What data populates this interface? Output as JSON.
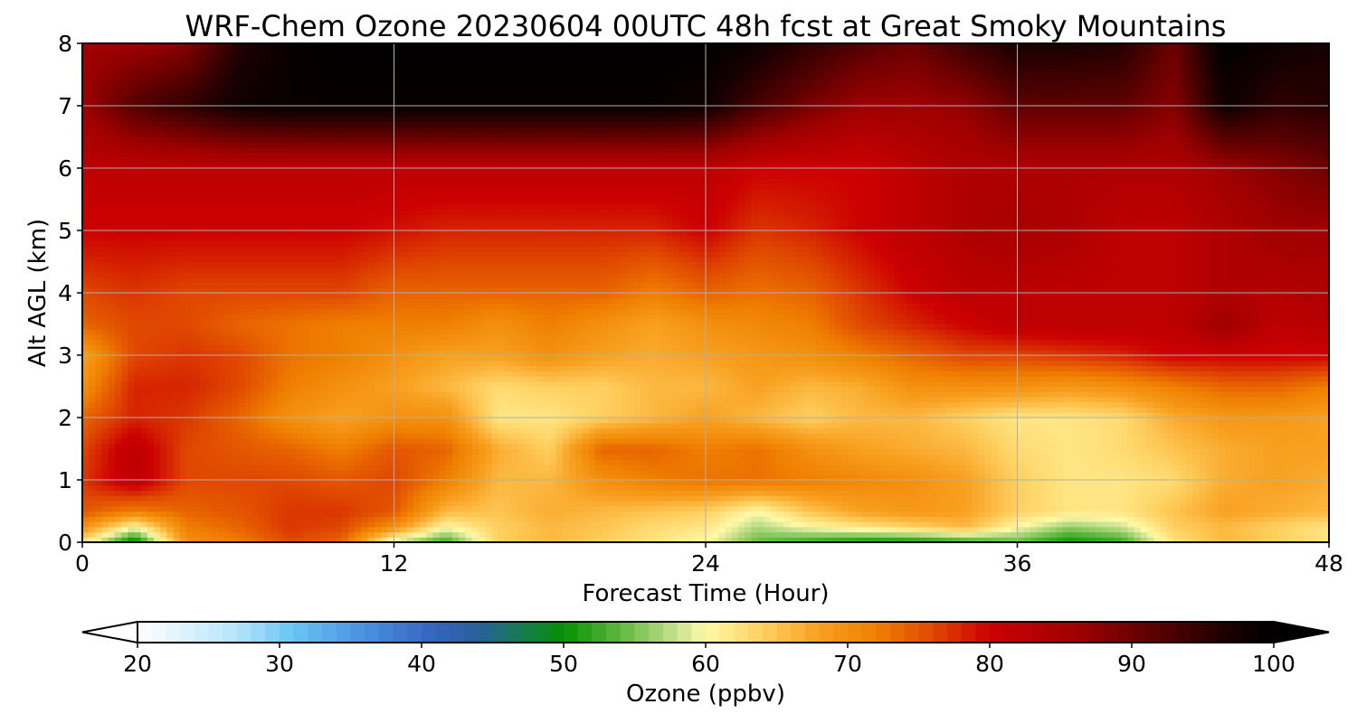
{
  "chart_data": {
    "type": "heatmap",
    "title": "WRF-Chem Ozone  20230604 00UTC 48h fcst at Great Smoky Mountains",
    "xlabel": "Forecast Time (Hour)",
    "ylabel": "Alt AGL (km)",
    "xlim": [
      0,
      48
    ],
    "ylim": [
      0,
      8
    ],
    "xticks": [
      "0",
      "12",
      "24",
      "36",
      "48"
    ],
    "yticks": [
      "0",
      "1",
      "2",
      "3",
      "4",
      "5",
      "6",
      "7",
      "8"
    ],
    "grid": true,
    "colorbar": {
      "label": "Ozone  (ppbv)",
      "range": [
        20,
        100
      ],
      "ticks": [
        "20",
        "30",
        "40",
        "50",
        "60",
        "70",
        "80",
        "90",
        "100"
      ],
      "extend": "both",
      "colormap_stops": [
        {
          "v": 20,
          "c": "#ffffff"
        },
        {
          "v": 27,
          "c": "#b4e4fa"
        },
        {
          "v": 31,
          "c": "#68c4f4"
        },
        {
          "v": 36,
          "c": "#4a90e0"
        },
        {
          "v": 41,
          "c": "#3464be"
        },
        {
          "v": 44,
          "c": "#27609a"
        },
        {
          "v": 47,
          "c": "#167a50"
        },
        {
          "v": 50,
          "c": "#069000"
        },
        {
          "v": 54,
          "c": "#60b840"
        },
        {
          "v": 58,
          "c": "#c8e290"
        },
        {
          "v": 60,
          "c": "#fffaa8"
        },
        {
          "v": 64,
          "c": "#ffd060"
        },
        {
          "v": 68,
          "c": "#f8a020"
        },
        {
          "v": 72,
          "c": "#f08000"
        },
        {
          "v": 76,
          "c": "#e04800"
        },
        {
          "v": 80,
          "c": "#cc0000"
        },
        {
          "v": 86,
          "c": "#a00000"
        },
        {
          "v": 92,
          "c": "#540000"
        },
        {
          "v": 97,
          "c": "#180000"
        },
        {
          "v": 100,
          "c": "#000000"
        }
      ]
    },
    "field": {
      "x": [
        0,
        2,
        4,
        6,
        8,
        10,
        12,
        14,
        16,
        18,
        20,
        22,
        24,
        26,
        28,
        30,
        32,
        34,
        36,
        38,
        40,
        42,
        44,
        46,
        48
      ],
      "y": [
        0,
        0.25,
        0.5,
        1,
        1.5,
        2,
        2.5,
        3,
        3.5,
        4,
        5,
        6,
        7,
        8
      ],
      "values": [
        [
          62,
          48,
          70,
          72,
          76,
          74,
          58,
          52,
          64,
          66,
          64,
          62,
          60,
          54,
          52,
          50,
          50,
          52,
          54,
          50,
          52,
          62,
          66,
          64,
          62
        ],
        [
          70,
          60,
          72,
          74,
          77,
          76,
          70,
          60,
          64,
          66,
          65,
          63,
          62,
          57,
          60,
          62,
          64,
          66,
          60,
          56,
          58,
          64,
          66,
          64,
          62
        ],
        [
          75,
          72,
          74,
          75,
          77,
          77,
          75,
          66,
          65,
          67,
          66,
          65,
          64,
          60,
          65,
          68,
          69,
          68,
          64,
          62,
          62,
          65,
          68,
          67,
          66
        ],
        [
          77,
          82,
          76,
          76,
          76,
          75,
          76,
          72,
          66,
          66,
          70,
          72,
          73,
          73,
          72,
          71,
          70,
          68,
          64,
          62,
          62,
          63,
          67,
          68,
          67
        ],
        [
          76,
          82,
          76,
          75,
          74,
          72,
          75,
          74,
          67,
          64,
          74,
          74,
          72,
          73,
          70,
          68,
          67,
          66,
          63,
          62,
          63,
          65,
          67,
          68,
          68
        ],
        [
          74,
          78,
          77,
          74,
          70,
          68,
          70,
          70,
          62,
          62,
          64,
          66,
          68,
          66,
          64,
          66,
          66,
          64,
          62,
          62,
          63,
          67,
          69,
          69,
          68
        ],
        [
          70,
          78,
          78,
          76,
          72,
          70,
          68,
          66,
          63,
          64,
          64,
          66,
          66,
          68,
          66,
          67,
          70,
          70,
          70,
          69,
          70,
          72,
          74,
          74,
          72
        ],
        [
          68,
          76,
          77,
          76,
          73,
          72,
          70,
          68,
          68,
          70,
          68,
          67,
          68,
          69,
          70,
          72,
          74,
          76,
          76,
          77,
          78,
          80,
          80,
          80,
          80
        ],
        [
          74,
          76,
          76,
          74,
          73,
          72,
          72,
          72,
          70,
          72,
          70,
          68,
          70,
          71,
          72,
          76,
          78,
          80,
          82,
          82,
          82,
          82,
          86,
          82,
          83
        ],
        [
          76,
          77,
          76,
          76,
          76,
          76,
          74,
          74,
          74,
          74,
          74,
          72,
          74,
          73,
          74,
          77,
          80,
          82,
          82,
          82,
          82,
          82,
          84,
          83,
          84
        ],
        [
          80,
          80,
          80,
          80,
          80,
          80,
          79,
          78,
          78,
          78,
          78,
          78,
          80,
          77,
          78,
          80,
          82,
          84,
          85,
          84,
          82,
          82,
          84,
          86,
          86
        ],
        [
          82,
          82,
          82,
          82,
          82,
          82,
          82,
          82,
          82,
          82,
          82,
          82,
          82,
          80,
          80,
          80,
          82,
          84,
          84,
          84,
          84,
          84,
          86,
          88,
          90
        ],
        [
          86,
          92,
          95,
          98,
          99,
          99,
          99,
          99,
          99,
          99,
          99,
          99,
          98,
          93,
          89,
          86,
          86,
          87,
          91,
          91,
          91,
          88,
          98,
          95,
          96
        ],
        [
          86,
          86,
          88,
          96,
          99,
          100,
          100,
          100,
          100,
          100,
          100,
          100,
          100,
          98,
          95,
          92,
          90,
          94,
          97,
          97,
          96,
          90,
          100,
          98,
          97
        ]
      ]
    }
  }
}
